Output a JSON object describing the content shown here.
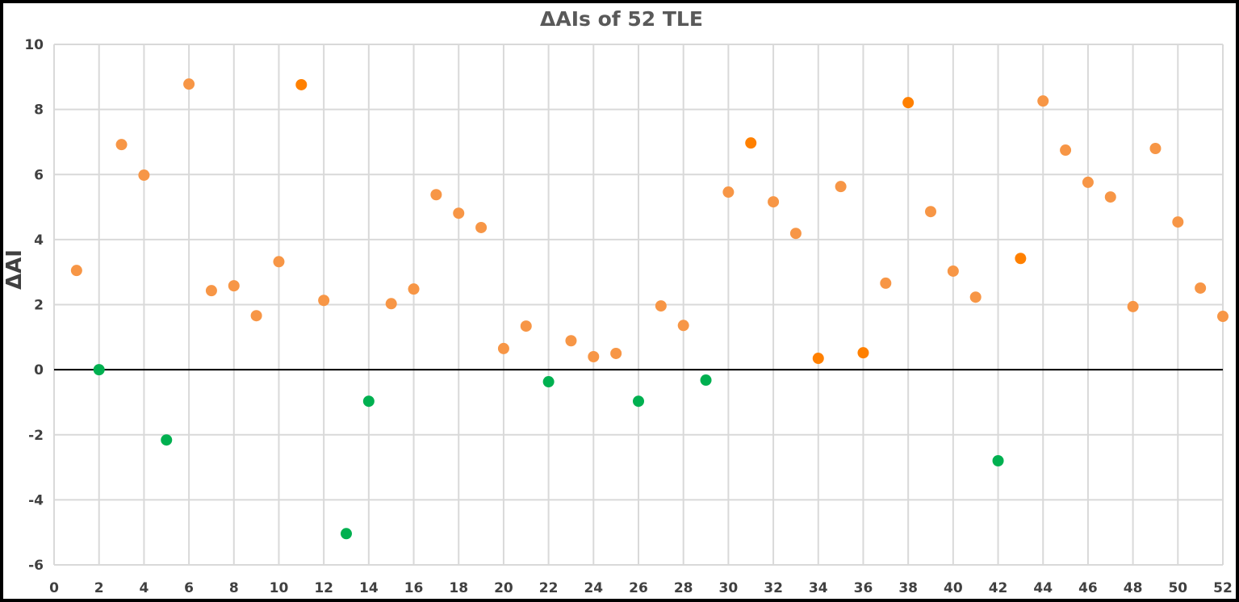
{
  "chart_data": {
    "type": "scatter",
    "title": "ΔAIs of 52 TLE",
    "xlabel": "",
    "ylabel": "ΔAI",
    "xlim": [
      0,
      52
    ],
    "ylim": [
      -6,
      10
    ],
    "x_ticks": [
      0,
      2,
      4,
      6,
      8,
      10,
      12,
      14,
      16,
      18,
      20,
      22,
      24,
      26,
      28,
      30,
      32,
      34,
      36,
      38,
      40,
      42,
      44,
      46,
      48,
      50,
      52
    ],
    "y_ticks": [
      -6,
      -4,
      -2,
      0,
      2,
      4,
      6,
      8,
      10
    ],
    "grid": true,
    "legend": "none",
    "colors": {
      "positive": "#F79646",
      "positive_highlight": "#FF8000",
      "negative": "#00B050",
      "zero_line": "#000000",
      "grid": "#D9D9D9"
    },
    "points": [
      {
        "x": 1,
        "y": 3.05,
        "c": "positive"
      },
      {
        "x": 2,
        "y": 0.0,
        "c": "negative"
      },
      {
        "x": 3,
        "y": 6.92,
        "c": "positive"
      },
      {
        "x": 4,
        "y": 5.98,
        "c": "positive"
      },
      {
        "x": 5,
        "y": -2.16,
        "c": "negative"
      },
      {
        "x": 6,
        "y": 8.78,
        "c": "positive"
      },
      {
        "x": 7,
        "y": 2.43,
        "c": "positive"
      },
      {
        "x": 8,
        "y": 2.58,
        "c": "positive"
      },
      {
        "x": 9,
        "y": 1.66,
        "c": "positive"
      },
      {
        "x": 10,
        "y": 3.32,
        "c": "positive"
      },
      {
        "x": 11,
        "y": 8.76,
        "c": "positive_highlight"
      },
      {
        "x": 12,
        "y": 2.13,
        "c": "positive"
      },
      {
        "x": 13,
        "y": -5.04,
        "c": "negative"
      },
      {
        "x": 14,
        "y": -0.97,
        "c": "negative"
      },
      {
        "x": 15,
        "y": 2.03,
        "c": "positive"
      },
      {
        "x": 16,
        "y": 2.48,
        "c": "positive"
      },
      {
        "x": 17,
        "y": 5.38,
        "c": "positive"
      },
      {
        "x": 18,
        "y": 4.81,
        "c": "positive"
      },
      {
        "x": 19,
        "y": 4.37,
        "c": "positive"
      },
      {
        "x": 20,
        "y": 0.65,
        "c": "positive"
      },
      {
        "x": 21,
        "y": 1.34,
        "c": "positive"
      },
      {
        "x": 22,
        "y": -0.37,
        "c": "negative"
      },
      {
        "x": 23,
        "y": 0.89,
        "c": "positive"
      },
      {
        "x": 24,
        "y": 0.4,
        "c": "positive"
      },
      {
        "x": 25,
        "y": 0.5,
        "c": "positive"
      },
      {
        "x": 26,
        "y": -0.97,
        "c": "negative"
      },
      {
        "x": 27,
        "y": 1.96,
        "c": "positive"
      },
      {
        "x": 28,
        "y": 1.36,
        "c": "positive"
      },
      {
        "x": 29,
        "y": -0.32,
        "c": "negative"
      },
      {
        "x": 30,
        "y": 5.46,
        "c": "positive"
      },
      {
        "x": 31,
        "y": 6.97,
        "c": "positive_highlight"
      },
      {
        "x": 32,
        "y": 5.16,
        "c": "positive"
      },
      {
        "x": 33,
        "y": 4.19,
        "c": "positive"
      },
      {
        "x": 34,
        "y": 0.35,
        "c": "positive_highlight"
      },
      {
        "x": 35,
        "y": 5.63,
        "c": "positive"
      },
      {
        "x": 36,
        "y": 0.52,
        "c": "positive_highlight"
      },
      {
        "x": 37,
        "y": 2.66,
        "c": "positive"
      },
      {
        "x": 38,
        "y": 8.21,
        "c": "positive_highlight"
      },
      {
        "x": 39,
        "y": 4.86,
        "c": "positive"
      },
      {
        "x": 40,
        "y": 3.03,
        "c": "positive"
      },
      {
        "x": 41,
        "y": 2.23,
        "c": "positive"
      },
      {
        "x": 42,
        "y": -2.8,
        "c": "negative"
      },
      {
        "x": 43,
        "y": 3.42,
        "c": "positive_highlight"
      },
      {
        "x": 44,
        "y": 8.26,
        "c": "positive"
      },
      {
        "x": 45,
        "y": 6.75,
        "c": "positive"
      },
      {
        "x": 46,
        "y": 5.76,
        "c": "positive"
      },
      {
        "x": 47,
        "y": 5.31,
        "c": "positive"
      },
      {
        "x": 48,
        "y": 1.94,
        "c": "positive"
      },
      {
        "x": 49,
        "y": 6.8,
        "c": "positive"
      },
      {
        "x": 50,
        "y": 4.54,
        "c": "positive"
      },
      {
        "x": 51,
        "y": 2.51,
        "c": "positive"
      },
      {
        "x": 52,
        "y": 1.64,
        "c": "positive"
      }
    ]
  }
}
